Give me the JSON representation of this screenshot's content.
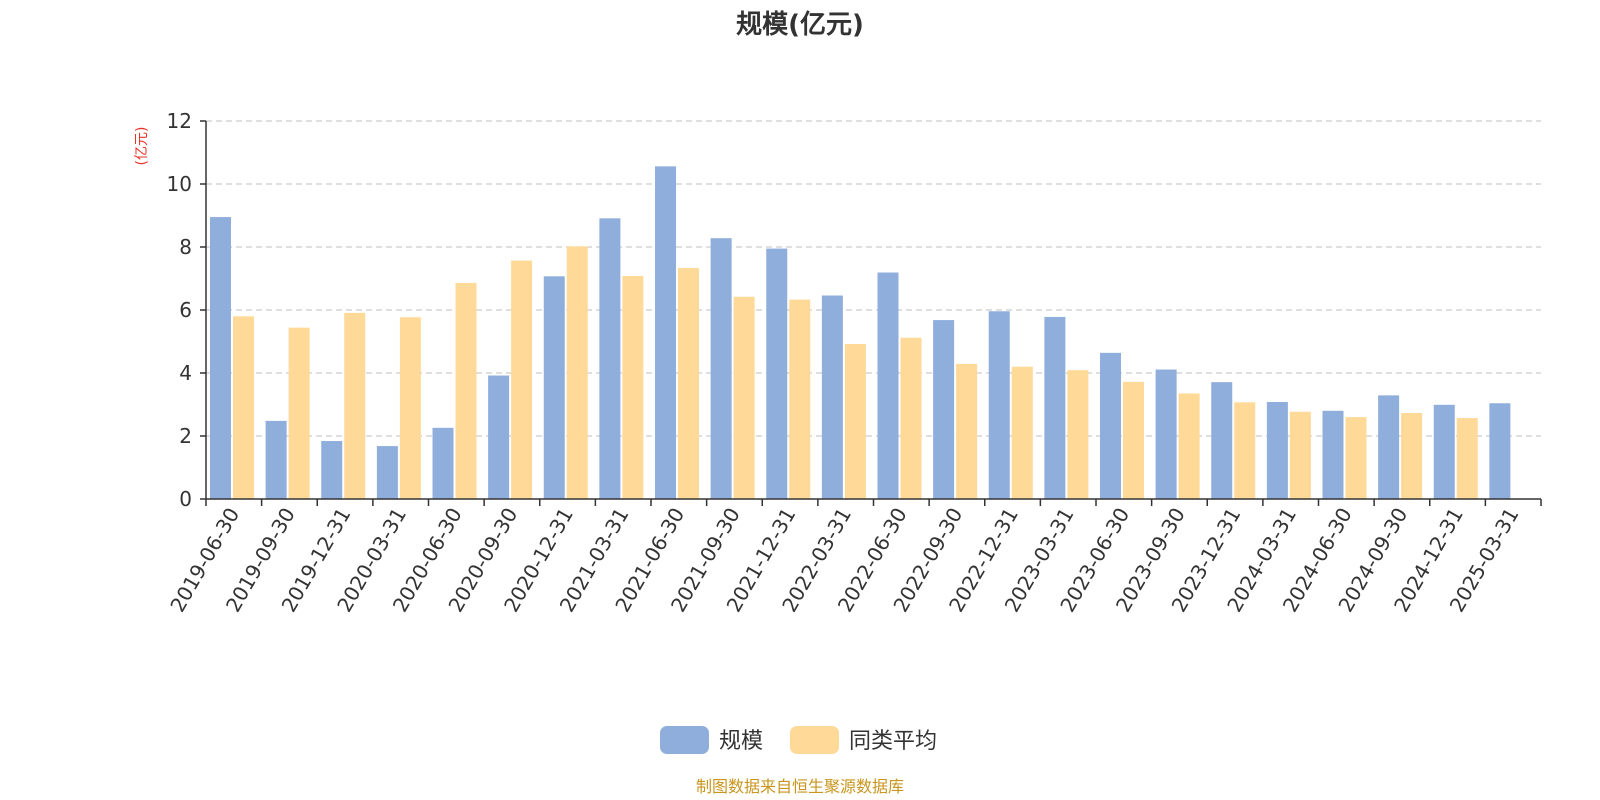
{
  "colors": {
    "series_0": "#8faedc",
    "series_1": "#ffd997",
    "ylabel": "#e8332a",
    "source": "#c8961e",
    "grid": "#cccccc",
    "axis": "#333333"
  },
  "footer": {
    "source": "制图数据来自恒生聚源数据库"
  },
  "chart_data": {
    "type": "bar",
    "title": "规模(亿元)",
    "xlabel": "",
    "ylabel": "(亿元)",
    "ylim": [
      0,
      12
    ],
    "yticks": [
      0,
      2,
      4,
      6,
      8,
      10,
      12
    ],
    "grid": true,
    "legend_position": "bottom-center",
    "categories": [
      "2019-06-30",
      "2019-09-30",
      "2019-12-31",
      "2020-03-31",
      "2020-06-30",
      "2020-09-30",
      "2020-12-31",
      "2021-03-31",
      "2021-06-30",
      "2021-09-30",
      "2021-12-31",
      "2022-03-31",
      "2022-06-30",
      "2022-09-30",
      "2022-12-31",
      "2023-03-31",
      "2023-06-30",
      "2023-09-30",
      "2023-12-31",
      "2024-03-31",
      "2024-06-30",
      "2024-09-30",
      "2024-12-31",
      "2025-03-31"
    ],
    "series": [
      {
        "name": "规模",
        "values": [
          8.95,
          2.48,
          1.84,
          1.68,
          2.26,
          3.92,
          7.07,
          8.91,
          10.56,
          8.28,
          7.95,
          6.46,
          7.19,
          5.68,
          5.96,
          5.78,
          4.64,
          4.11,
          3.71,
          3.08,
          2.8,
          3.29,
          2.99,
          3.04
        ]
      },
      {
        "name": "同类平均",
        "values": [
          5.8,
          5.44,
          5.91,
          5.77,
          6.86,
          7.57,
          8.02,
          7.08,
          7.33,
          6.42,
          6.33,
          4.92,
          5.12,
          4.29,
          4.2,
          4.09,
          3.72,
          3.35,
          3.07,
          2.77,
          2.6,
          2.73,
          2.57,
          null
        ]
      }
    ]
  }
}
